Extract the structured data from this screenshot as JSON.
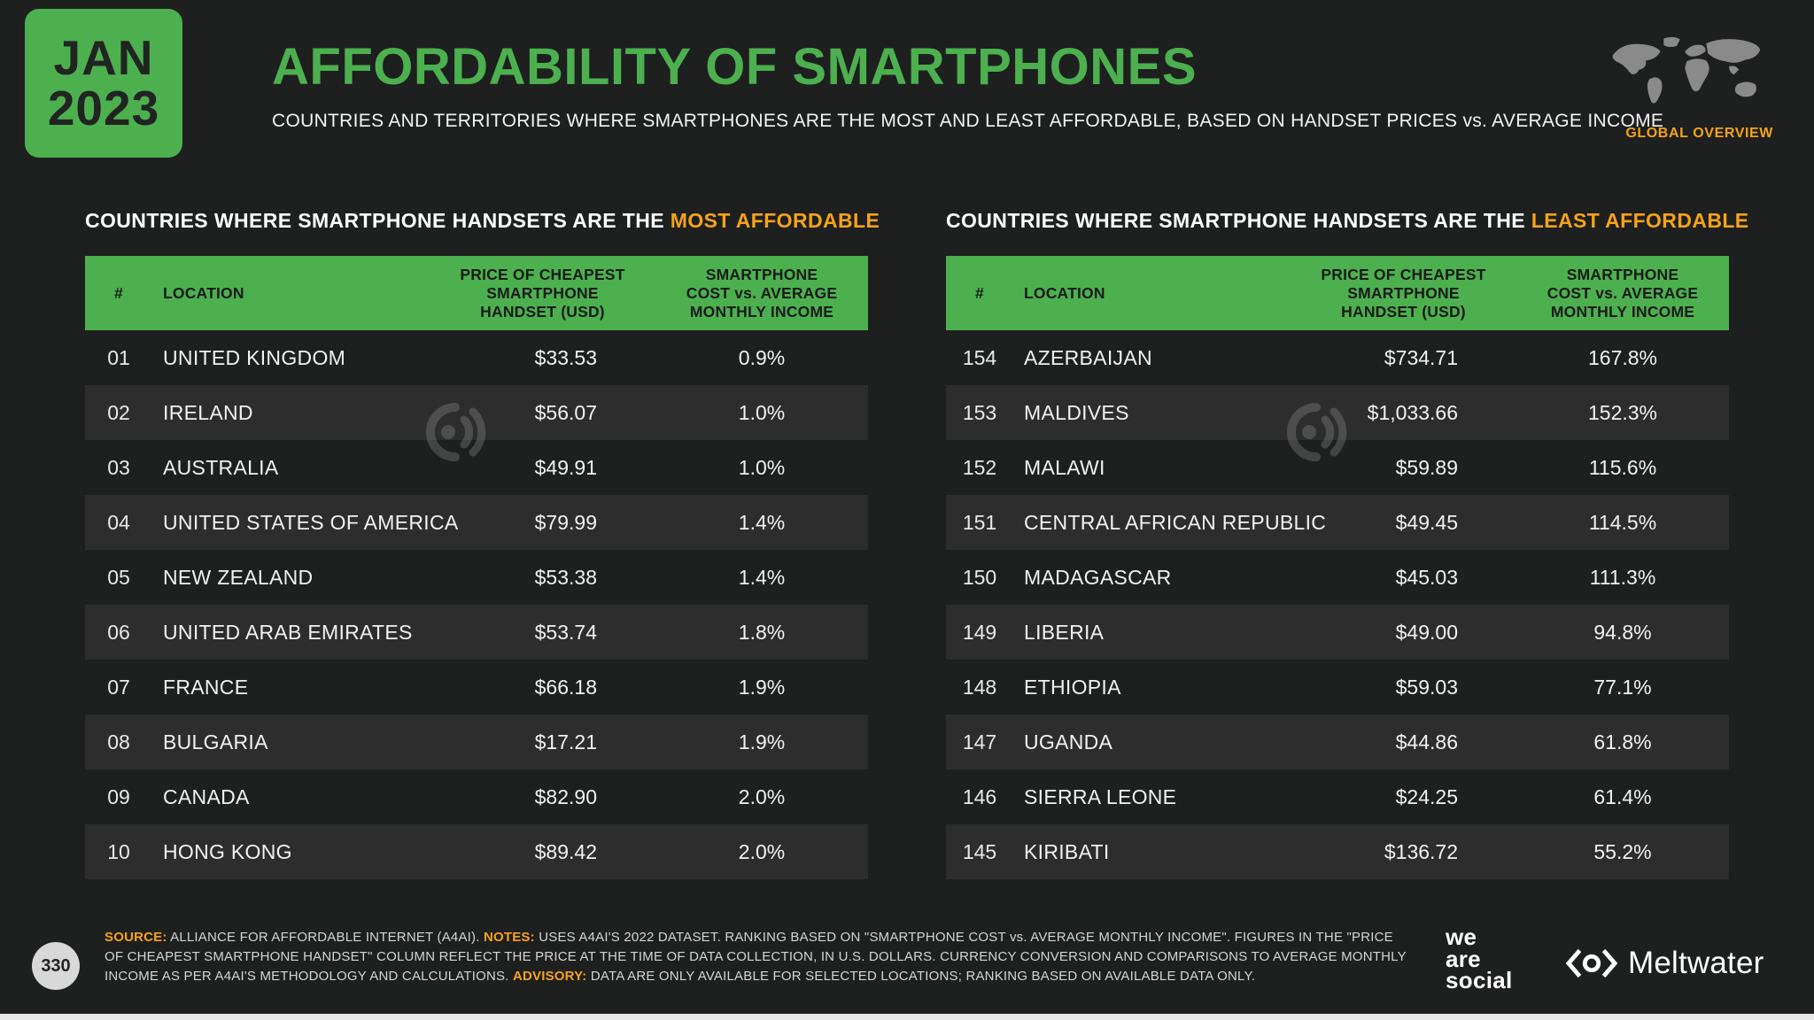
{
  "slide": {
    "page_number": "330",
    "colors": {
      "accent_green": "#4CB04F",
      "accent_orange": "#F5A31B",
      "background": "#1E1F1F",
      "row_stripe": "#2D2D2D"
    }
  },
  "header": {
    "date_month": "JAN",
    "date_year": "2023",
    "title": "AFFORDABILITY OF SMARTPHONES",
    "subtitle": "COUNTRIES AND TERRITORIES WHERE SMARTPHONES ARE THE MOST AND LEAST AFFORDABLE, BASED ON HANDSET PRICES vs. AVERAGE INCOME",
    "corner_label": "GLOBAL OVERVIEW"
  },
  "tables": [
    {
      "section_prefix": "COUNTRIES WHERE SMARTPHONE HANDSETS ARE THE ",
      "section_highlight": "MOST AFFORDABLE",
      "headers": {
        "rank": "#",
        "location": "LOCATION",
        "price": "PRICE OF CHEAPEST SMARTPHONE HANDSET (USD)",
        "cost": "SMARTPHONE COST vs. AVERAGE MONTHLY INCOME"
      }
    },
    {
      "section_prefix": "COUNTRIES WHERE SMARTPHONE HANDSETS ARE THE ",
      "section_highlight": "LEAST AFFORDABLE",
      "headers": {
        "rank": "#",
        "location": "LOCATION",
        "price": "PRICE OF CHEAPEST SMARTPHONE HANDSET (USD)",
        "cost": "SMARTPHONE COST vs. AVERAGE MONTHLY INCOME"
      }
    }
  ],
  "chart_data": [
    {
      "type": "table",
      "title": "COUNTRIES WHERE SMARTPHONE HANDSETS ARE THE MOST AFFORDABLE",
      "columns": [
        "#",
        "LOCATION",
        "PRICE OF CHEAPEST SMARTPHONE HANDSET (USD)",
        "SMARTPHONE COST vs. AVERAGE MONTHLY INCOME"
      ],
      "rows": [
        [
          "01",
          "UNITED KINGDOM",
          "$33.53",
          "0.9%"
        ],
        [
          "02",
          "IRELAND",
          "$56.07",
          "1.0%"
        ],
        [
          "03",
          "AUSTRALIA",
          "$49.91",
          "1.0%"
        ],
        [
          "04",
          "UNITED STATES OF AMERICA",
          "$79.99",
          "1.4%"
        ],
        [
          "05",
          "NEW ZEALAND",
          "$53.38",
          "1.4%"
        ],
        [
          "06",
          "UNITED ARAB EMIRATES",
          "$53.74",
          "1.8%"
        ],
        [
          "07",
          "FRANCE",
          "$66.18",
          "1.9%"
        ],
        [
          "08",
          "BULGARIA",
          "$17.21",
          "1.9%"
        ],
        [
          "09",
          "CANADA",
          "$82.90",
          "2.0%"
        ],
        [
          "10",
          "HONG KONG",
          "$89.42",
          "2.0%"
        ]
      ]
    },
    {
      "type": "table",
      "title": "COUNTRIES WHERE SMARTPHONE HANDSETS ARE THE LEAST AFFORDABLE",
      "columns": [
        "#",
        "LOCATION",
        "PRICE OF CHEAPEST SMARTPHONE HANDSET (USD)",
        "SMARTPHONE COST vs. AVERAGE MONTHLY INCOME"
      ],
      "rows": [
        [
          "154",
          "AZERBAIJAN",
          "$734.71",
          "167.8%"
        ],
        [
          "153",
          "MALDIVES",
          "$1,033.66",
          "152.3%"
        ],
        [
          "152",
          "MALAWI",
          "$59.89",
          "115.6%"
        ],
        [
          "151",
          "CENTRAL AFRICAN REPUBLIC",
          "$49.45",
          "114.5%"
        ],
        [
          "150",
          "MADAGASCAR",
          "$45.03",
          "111.3%"
        ],
        [
          "149",
          "LIBERIA",
          "$49.00",
          "94.8%"
        ],
        [
          "148",
          "ETHIOPIA",
          "$59.03",
          "77.1%"
        ],
        [
          "147",
          "UGANDA",
          "$44.86",
          "61.8%"
        ],
        [
          "146",
          "SIERRA LEONE",
          "$24.25",
          "61.4%"
        ],
        [
          "145",
          "KIRIBATI",
          "$136.72",
          "55.2%"
        ]
      ]
    }
  ],
  "footer": {
    "source_label": "SOURCE:",
    "source_text": "ALLIANCE FOR AFFORDABLE INTERNET (A4AI).",
    "notes_label": "NOTES:",
    "notes_text": "USES A4AI'S 2022 DATASET. RANKING BASED ON \"SMARTPHONE COST vs. AVERAGE MONTHLY INCOME\". FIGURES IN THE \"PRICE OF CHEAPEST SMARTPHONE HANDSET\" COLUMN REFLECT THE PRICE AT THE TIME OF DATA COLLECTION, IN U.S. DOLLARS. CURRENCY CONVERSION AND COMPARISONS TO AVERAGE MONTHLY INCOME AS PER A4AI'S METHODOLOGY AND CALCULATIONS.",
    "advisory_label": "ADVISORY:",
    "advisory_text": "DATA ARE ONLY AVAILABLE FOR SELECTED LOCATIONS; RANKING BASED ON AVAILABLE DATA ONLY.",
    "brand_we_are_social": [
      "we",
      "are",
      "social"
    ],
    "brand_meltwater": "Meltwater"
  }
}
